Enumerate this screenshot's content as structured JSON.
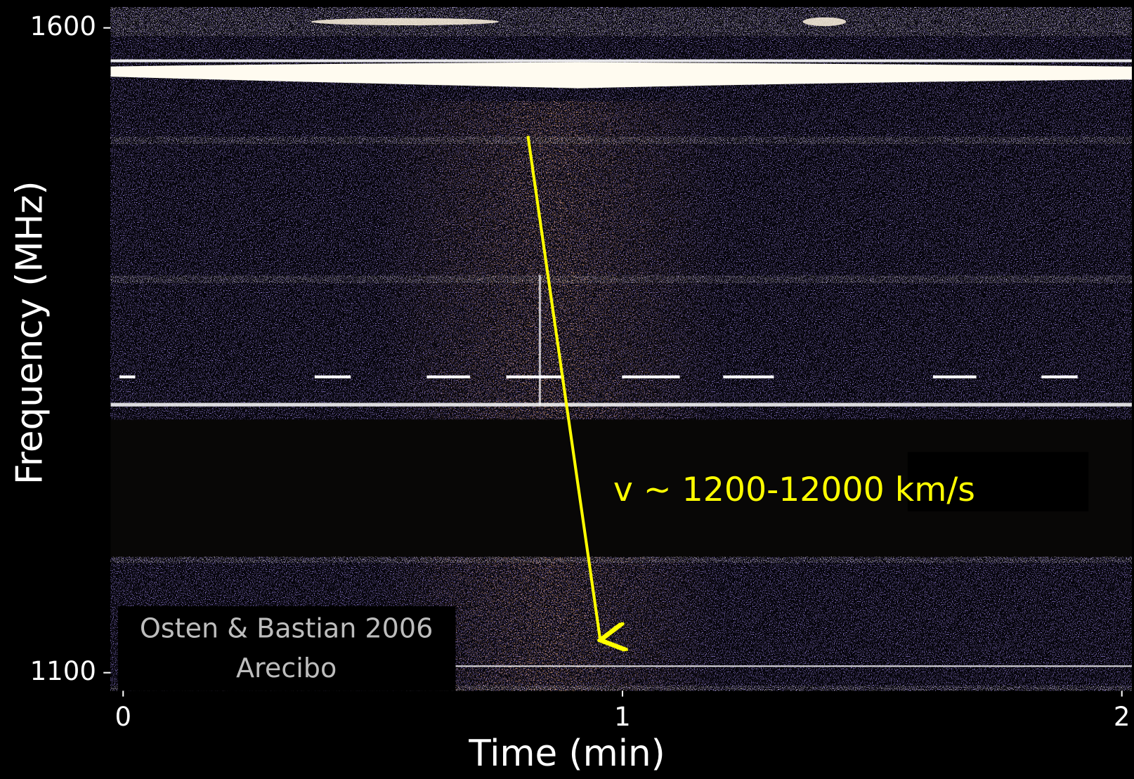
{
  "chart_data": {
    "type": "spectrogram",
    "x_label": "Time (min)",
    "y_label": "Frequency (MHz)",
    "xlim": [
      -0.025,
      2.02
    ],
    "xticks": [
      0,
      1,
      2
    ],
    "ylim": [
      1086,
      1616
    ],
    "yticks": [
      1100,
      1600
    ],
    "annotation": "v ~ 1200-12000 km/s",
    "annotation_color": "#ffff00",
    "credit": [
      "Osten & Bastian 2006",
      "Arecibo"
    ]
  }
}
